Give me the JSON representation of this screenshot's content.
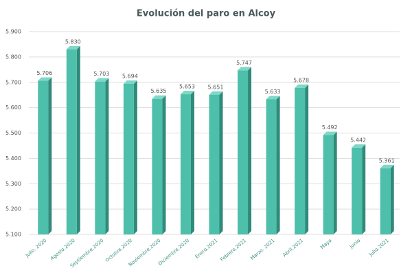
{
  "chart_data": {
    "type": "bar",
    "title": "Evolución del paro en Alcoy",
    "categories": [
      "Julio. 2020",
      "Agosto.2020",
      "Septiembre.2020",
      "Octubre.2020",
      "Noviembre.2020",
      "Diciembre.2020",
      "Enero.2021",
      "Febrero.2021",
      "Marzo. 2021",
      "Abril.2021",
      "Mayo",
      "Junio",
      "Julio.2021"
    ],
    "values": [
      5706,
      5830,
      5703,
      5694,
      5635,
      5653,
      5651,
      5747,
      5633,
      5678,
      5492,
      5442,
      5361
    ],
    "value_labels": [
      "5.706",
      "5.830",
      "5.703",
      "5.694",
      "5.635",
      "5.653",
      "5.651",
      "5.747",
      "5.633",
      "5.678",
      "5.492",
      "5.442",
      "5.361"
    ],
    "color": "#4dbfaa",
    "ylim": [
      5100,
      5900
    ],
    "yticks": [
      {
        "value": 5100,
        "label": "5.100"
      },
      {
        "value": 5200,
        "label": "5.200"
      },
      {
        "value": 5300,
        "label": "5.300"
      },
      {
        "value": 5400,
        "label": "5.400"
      },
      {
        "value": 5500,
        "label": "5.500"
      },
      {
        "value": 5600,
        "label": "5.600"
      },
      {
        "value": 5700,
        "label": "5.700"
      },
      {
        "value": 5800,
        "label": "5.800"
      },
      {
        "value": 5900,
        "label": "5.900"
      }
    ],
    "grid": true
  }
}
